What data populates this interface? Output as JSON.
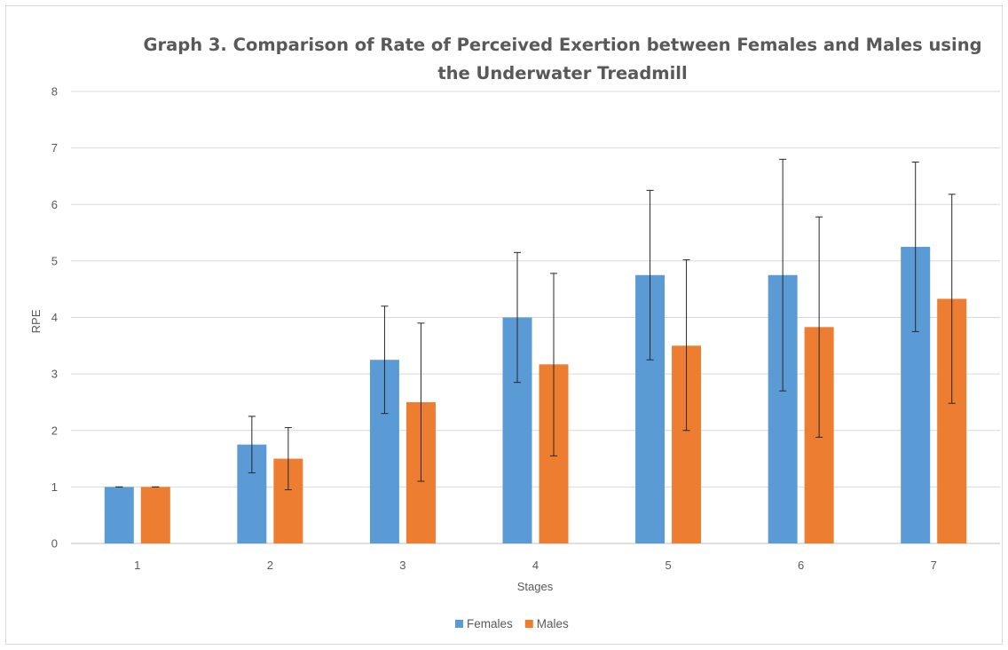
{
  "chart_data": {
    "type": "bar",
    "title_lines": [
      "Graph 3. Comparison of Rate of Perceived Exertion between Females and Males using",
      "the Underwater Treadmill"
    ],
    "xlabel": "Stages",
    "ylabel": "RPE",
    "categories": [
      "1",
      "2",
      "3",
      "4",
      "5",
      "6",
      "7"
    ],
    "ylim": [
      0,
      8
    ],
    "yticks": [
      0,
      1,
      2,
      3,
      4,
      5,
      6,
      7,
      8
    ],
    "grid": true,
    "legend_position": "bottom",
    "series": [
      {
        "name": "Females",
        "color": "#5b9bd5",
        "values": [
          1.0,
          1.75,
          3.25,
          4.0,
          4.75,
          4.75,
          5.25
        ],
        "error_low": [
          1.0,
          1.25,
          2.3,
          2.85,
          3.25,
          2.7,
          3.75
        ],
        "error_high": [
          1.0,
          2.25,
          4.2,
          5.15,
          6.25,
          6.8,
          6.75
        ]
      },
      {
        "name": "Males",
        "color": "#ed7d31",
        "values": [
          1.0,
          1.5,
          2.5,
          3.17,
          3.5,
          3.83,
          4.33
        ],
        "error_low": [
          1.0,
          0.95,
          1.1,
          1.55,
          2.0,
          1.88,
          2.48
        ],
        "error_high": [
          1.0,
          2.05,
          3.9,
          4.78,
          5.02,
          5.78,
          6.18
        ]
      }
    ]
  }
}
